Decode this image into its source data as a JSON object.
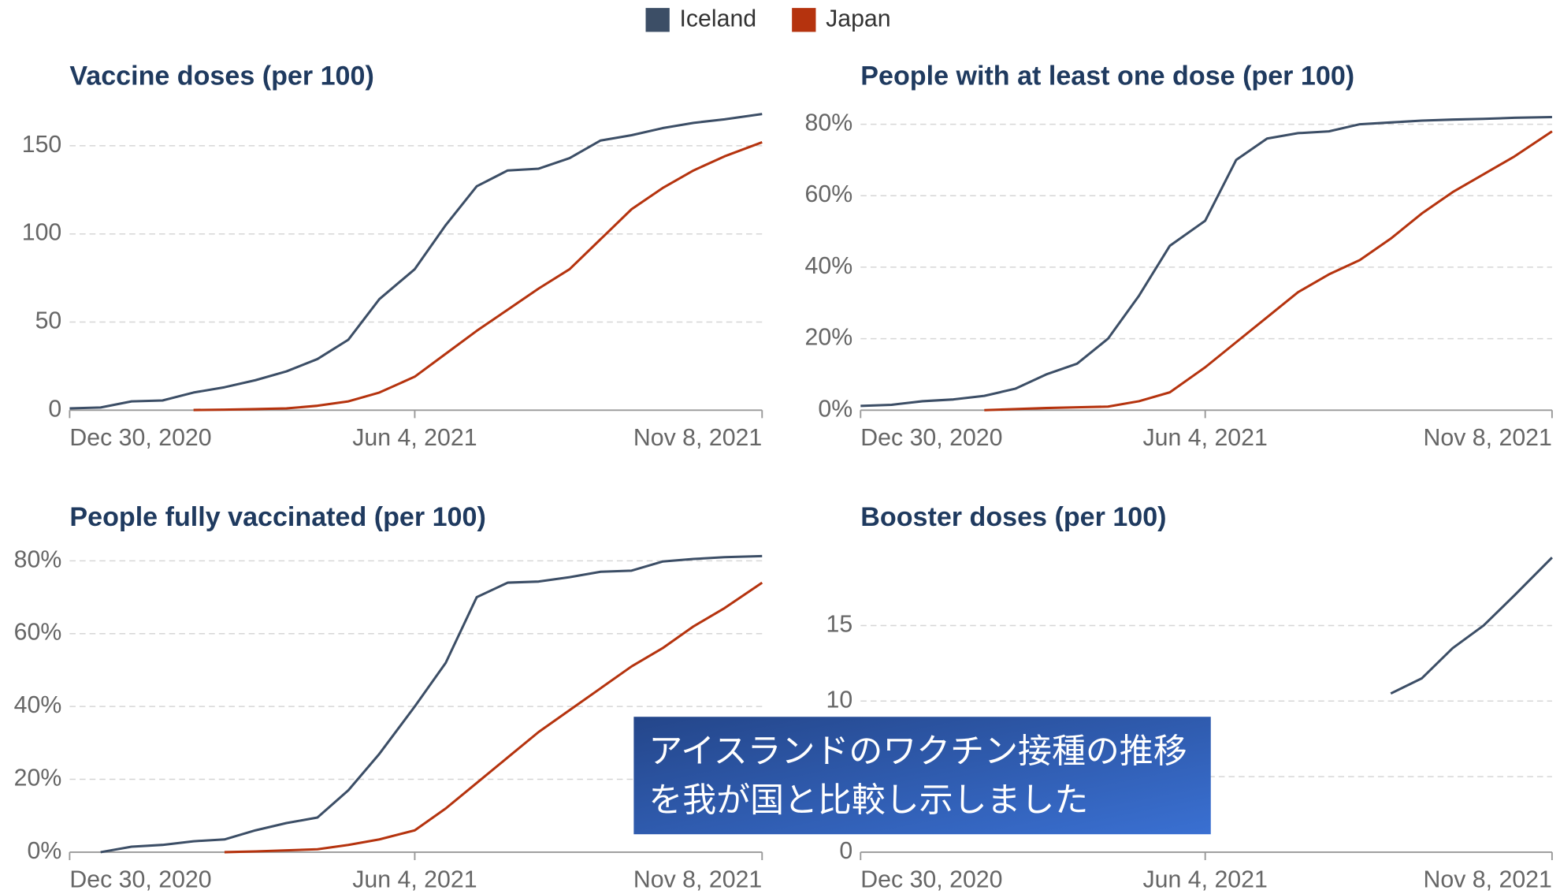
{
  "chart_data": [
    {
      "type": "line",
      "title": "Vaccine doses (per 100)",
      "x": [
        "2020-12-30",
        "2021-01-13",
        "2021-01-27",
        "2021-02-10",
        "2021-02-24",
        "2021-03-10",
        "2021-03-24",
        "2021-04-07",
        "2021-04-21",
        "2021-05-05",
        "2021-05-19",
        "2021-06-04",
        "2021-06-18",
        "2021-07-02",
        "2021-07-16",
        "2021-07-30",
        "2021-08-13",
        "2021-08-27",
        "2021-09-10",
        "2021-09-24",
        "2021-10-08",
        "2021-10-22",
        "2021-11-08"
      ],
      "xlim": [
        "2020-12-30",
        "2021-11-08"
      ],
      "xticks": [
        {
          "value": "2020-12-30",
          "label": "Dec 30, 2020"
        },
        {
          "value": "2021-06-04",
          "label": "Jun 4, 2021"
        },
        {
          "value": "2021-11-08",
          "label": "Nov 8, 2021"
        }
      ],
      "ylim": [
        0,
        170
      ],
      "yticks": [
        0,
        50,
        100,
        150
      ],
      "grid": true,
      "series": [
        {
          "name": "Iceland",
          "color": "#3c4e66",
          "values": [
            1,
            1.5,
            5,
            5.5,
            10,
            13,
            17,
            22,
            29,
            40,
            63,
            80,
            105,
            127,
            136,
            137,
            143,
            153,
            156,
            160,
            163,
            165,
            168
          ]
        },
        {
          "name": "Japan",
          "color": "#b5330e",
          "values": [
            null,
            null,
            null,
            null,
            0.1,
            0.3,
            0.6,
            1,
            2.5,
            5,
            10,
            19,
            32,
            45,
            57,
            69,
            80,
            97,
            114,
            126,
            136,
            144,
            152
          ]
        }
      ]
    },
    {
      "type": "line",
      "title": "People with at least one dose (per 100)",
      "x": [
        "2020-12-30",
        "2021-01-13",
        "2021-01-27",
        "2021-02-10",
        "2021-02-24",
        "2021-03-10",
        "2021-03-24",
        "2021-04-07",
        "2021-04-21",
        "2021-05-05",
        "2021-05-19",
        "2021-06-04",
        "2021-06-18",
        "2021-07-02",
        "2021-07-16",
        "2021-07-30",
        "2021-08-13",
        "2021-08-27",
        "2021-09-10",
        "2021-09-24",
        "2021-10-08",
        "2021-10-22",
        "2021-11-08"
      ],
      "xlim": [
        "2020-12-30",
        "2021-11-08"
      ],
      "xticks": [
        {
          "value": "2020-12-30",
          "label": "Dec 30, 2020"
        },
        {
          "value": "2021-06-04",
          "label": "Jun 4, 2021"
        },
        {
          "value": "2021-11-08",
          "label": "Nov 8, 2021"
        }
      ],
      "ylim": [
        0,
        83
      ],
      "yticks": [
        {
          "value": 0,
          "label": "0%"
        },
        {
          "value": 20,
          "label": "20%"
        },
        {
          "value": 40,
          "label": "40%"
        },
        {
          "value": 60,
          "label": "60%"
        },
        {
          "value": 80,
          "label": "80%"
        }
      ],
      "grid": true,
      "series": [
        {
          "name": "Iceland",
          "color": "#3c4e66",
          "values": [
            1.2,
            1.5,
            2.5,
            3,
            4,
            6,
            10,
            13,
            20,
            32,
            46,
            53,
            70,
            76,
            77.5,
            78,
            80,
            80.5,
            81,
            81.3,
            81.5,
            81.8,
            82
          ]
        },
        {
          "name": "Japan",
          "color": "#b5330e",
          "values": [
            null,
            null,
            null,
            null,
            0,
            0.3,
            0.6,
            0.8,
            1,
            2.5,
            5,
            12,
            19,
            26,
            33,
            38,
            42,
            48,
            55,
            61,
            66,
            71,
            78
          ]
        }
      ]
    },
    {
      "type": "line",
      "title": "People fully vaccinated (per 100)",
      "x": [
        "2020-12-30",
        "2021-01-13",
        "2021-01-27",
        "2021-02-10",
        "2021-02-24",
        "2021-03-10",
        "2021-03-24",
        "2021-04-07",
        "2021-04-21",
        "2021-05-05",
        "2021-05-19",
        "2021-06-04",
        "2021-06-18",
        "2021-07-02",
        "2021-07-16",
        "2021-07-30",
        "2021-08-13",
        "2021-08-27",
        "2021-09-10",
        "2021-09-24",
        "2021-10-08",
        "2021-10-22",
        "2021-11-08"
      ],
      "xlim": [
        "2020-12-30",
        "2021-11-08"
      ],
      "xticks": [
        {
          "value": "2020-12-30",
          "label": "Dec 30, 2020"
        },
        {
          "value": "2021-06-04",
          "label": "Jun 4, 2021"
        },
        {
          "value": "2021-11-08",
          "label": "Nov 8, 2021"
        }
      ],
      "ylim": [
        0,
        82
      ],
      "yticks": [
        {
          "value": 0,
          "label": "0%"
        },
        {
          "value": 20,
          "label": "20%"
        },
        {
          "value": 40,
          "label": "40%"
        },
        {
          "value": 60,
          "label": "60%"
        },
        {
          "value": 80,
          "label": "80%"
        }
      ],
      "grid": true,
      "series": [
        {
          "name": "Iceland",
          "color": "#3c4e66",
          "values": [
            null,
            0,
            1.5,
            2,
            3,
            3.5,
            6,
            8,
            9.5,
            17,
            27,
            40,
            52,
            70,
            74,
            74.3,
            75.5,
            77,
            77.3,
            79.8,
            80.5,
            81,
            81.3
          ]
        },
        {
          "name": "Japan",
          "color": "#b5330e",
          "values": [
            null,
            null,
            null,
            null,
            null,
            0,
            0.2,
            0.5,
            0.8,
            2,
            3.5,
            6,
            12,
            19,
            26,
            33,
            39,
            45,
            51,
            56,
            62,
            67,
            74
          ]
        }
      ]
    },
    {
      "type": "line",
      "title": "Booster doses (per 100)",
      "x": [
        "2021-08-27",
        "2021-09-10",
        "2021-09-24",
        "2021-10-08",
        "2021-10-22",
        "2021-11-08"
      ],
      "xlim": [
        "2020-12-30",
        "2021-11-08"
      ],
      "xticks": [
        {
          "value": "2020-12-30",
          "label": "Dec 30, 2020"
        },
        {
          "value": "2021-06-04",
          "label": "Jun 4, 2021"
        },
        {
          "value": "2021-11-08",
          "label": "Nov 8, 2021"
        }
      ],
      "ylim": [
        0,
        19.7
      ],
      "yticks": [
        0,
        5,
        10,
        15
      ],
      "grid": true,
      "series": [
        {
          "name": "Iceland",
          "color": "#3c4e66",
          "values": [
            10.5,
            11.5,
            13.5,
            15,
            17,
            19.5
          ]
        }
      ]
    }
  ],
  "overlay": {
    "lines": [
      "アイスランドのワクチン接種の推移",
      "を我が国と比較し示しました"
    ]
  }
}
